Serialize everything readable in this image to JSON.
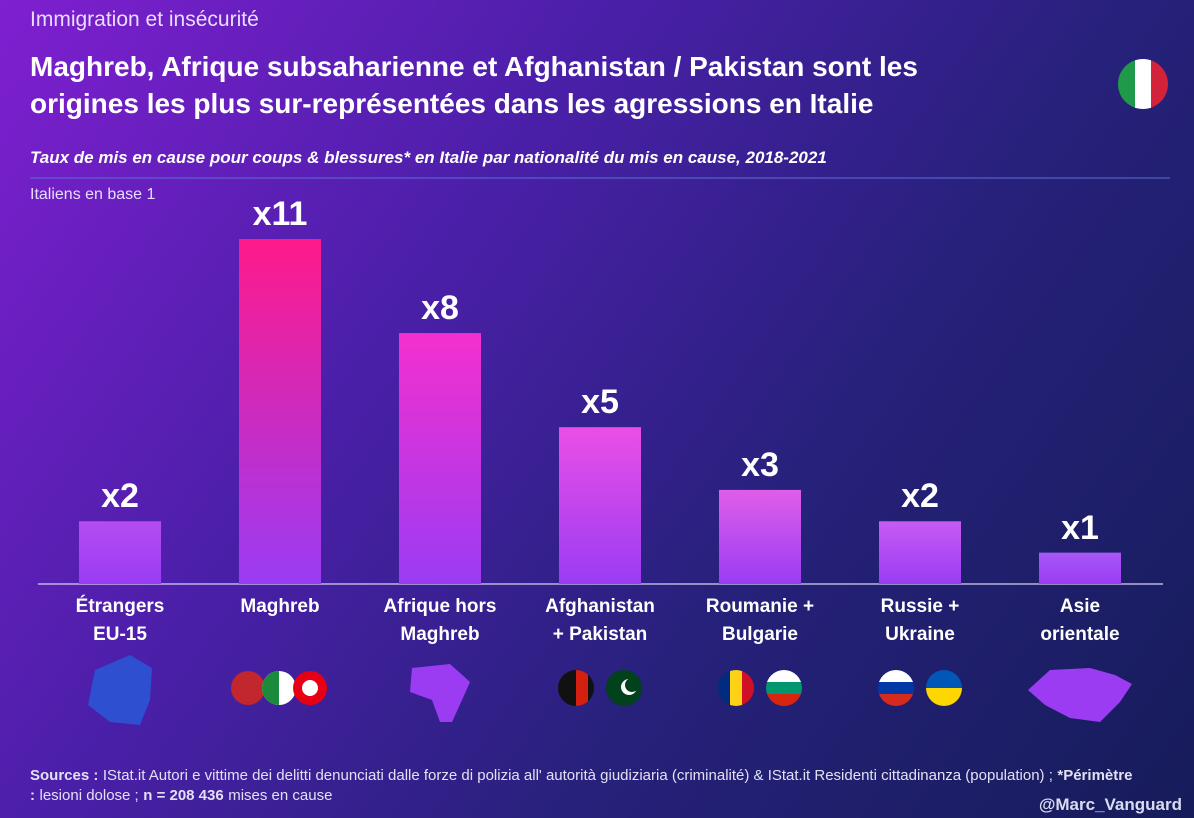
{
  "chart_data": {
    "type": "bar",
    "kicker": "Immigration et insécurité",
    "title": "Maghreb, Afrique subsaharienne et Afghanistan / Pakistan sont les\norigines les plus sur-représentées dans les agressions en Italie",
    "subtitle": "Taux de mis en cause pour coups & blessures* en Italie par nationalité du mis en cause, 2018-2021",
    "note": "Italiens en base 1",
    "categories": [
      "Étrangers\nEU-15",
      "Maghreb",
      "Afrique hors\nMaghreb",
      "Afghanistan\n+ Pakistan",
      "Roumanie +\nBulgarie",
      "Russie +\nUkraine",
      "Asie\norientale"
    ],
    "values": [
      2,
      11,
      8,
      5,
      3,
      2,
      1
    ],
    "value_labels": [
      "x2",
      "x11",
      "x8",
      "x5",
      "x3",
      "x2",
      "x1"
    ],
    "colors": [
      "#b54cf2",
      "#ff1a8a",
      "#f52fce",
      "#ea4fe6",
      "#df5ee9",
      "#c75bf3",
      "#a957f6"
    ],
    "source": [
      "Sources :",
      "IStat.it Autori e vittime dei delitti denunciati dalle forze di polizia all' autorità giudiziaria (criminalité) & IStat.it Residenti cittadinanza (population) ;",
      "*Périmètre :",
      "lesioni dolose ;",
      "n = 208 436",
      "mises en cause"
    ],
    "handle": "@Marc_Vanguard"
  }
}
